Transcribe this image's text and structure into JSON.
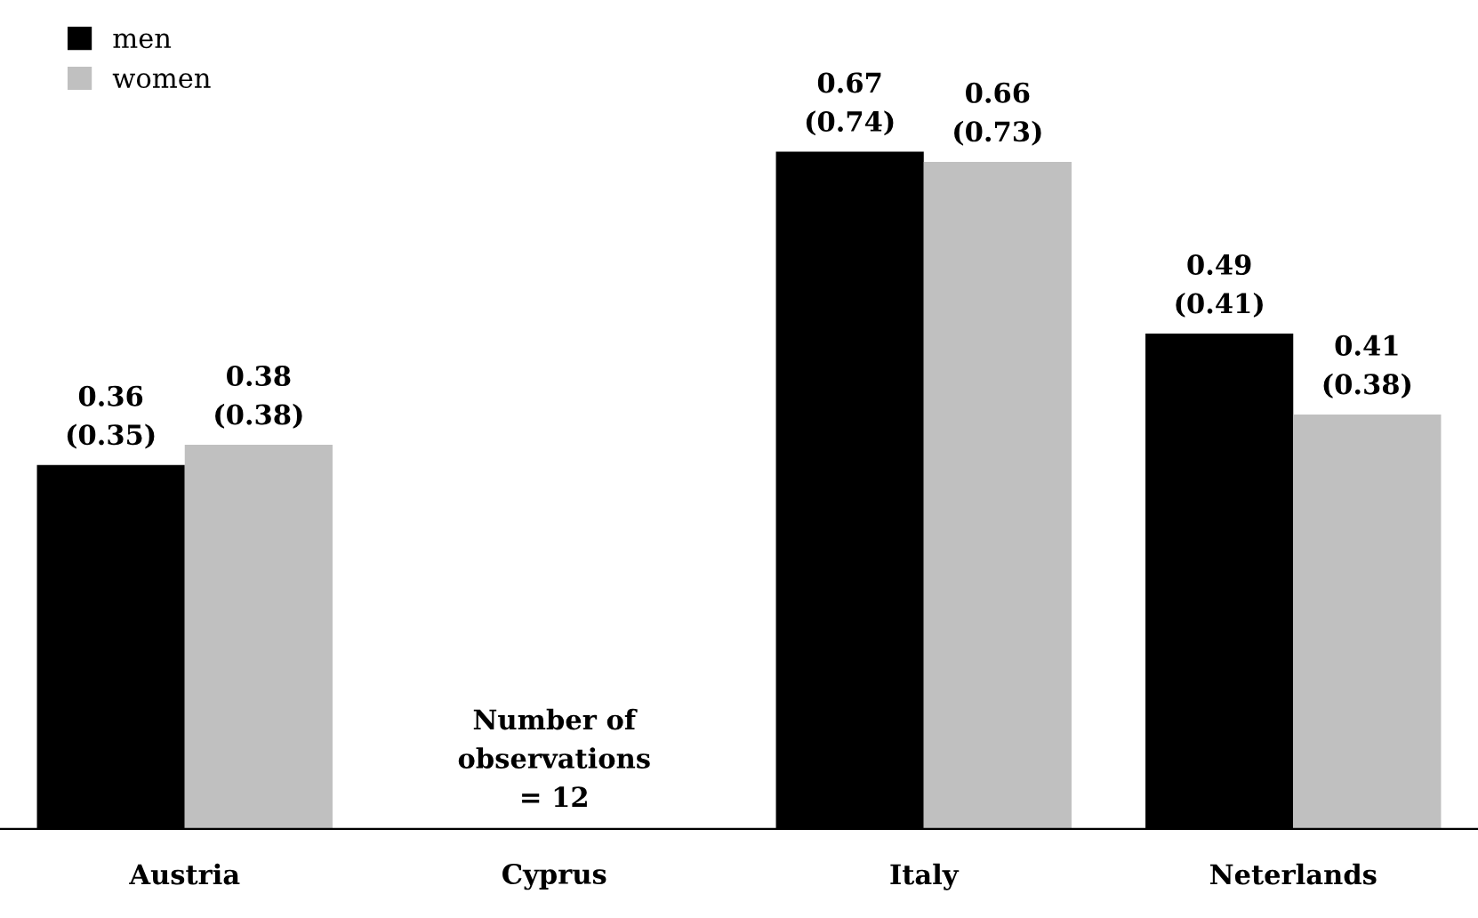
{
  "chart_data": {
    "type": "bar",
    "categories": [
      "Austria",
      "Cyprus",
      "Italy",
      "Neterlands"
    ],
    "series": [
      {
        "name": "men",
        "color": "#000000",
        "values": [
          0.36,
          null,
          0.67,
          0.49
        ],
        "value_labels": [
          "0.36\n(0.35)",
          null,
          "0.67\n(0.74)",
          "0.49\n(0.41)"
        ]
      },
      {
        "name": "women",
        "color": "#c0c0c0",
        "values": [
          0.38,
          null,
          0.66,
          0.41
        ],
        "value_labels": [
          "0.38\n(0.38)",
          null,
          "0.66\n(0.73)",
          "0.41\n(0.38)"
        ]
      }
    ],
    "annotations": [
      "Number of\nobservations\n= 12"
    ],
    "tick_labels": "x",
    "legend": "top left",
    "grid": false
  }
}
